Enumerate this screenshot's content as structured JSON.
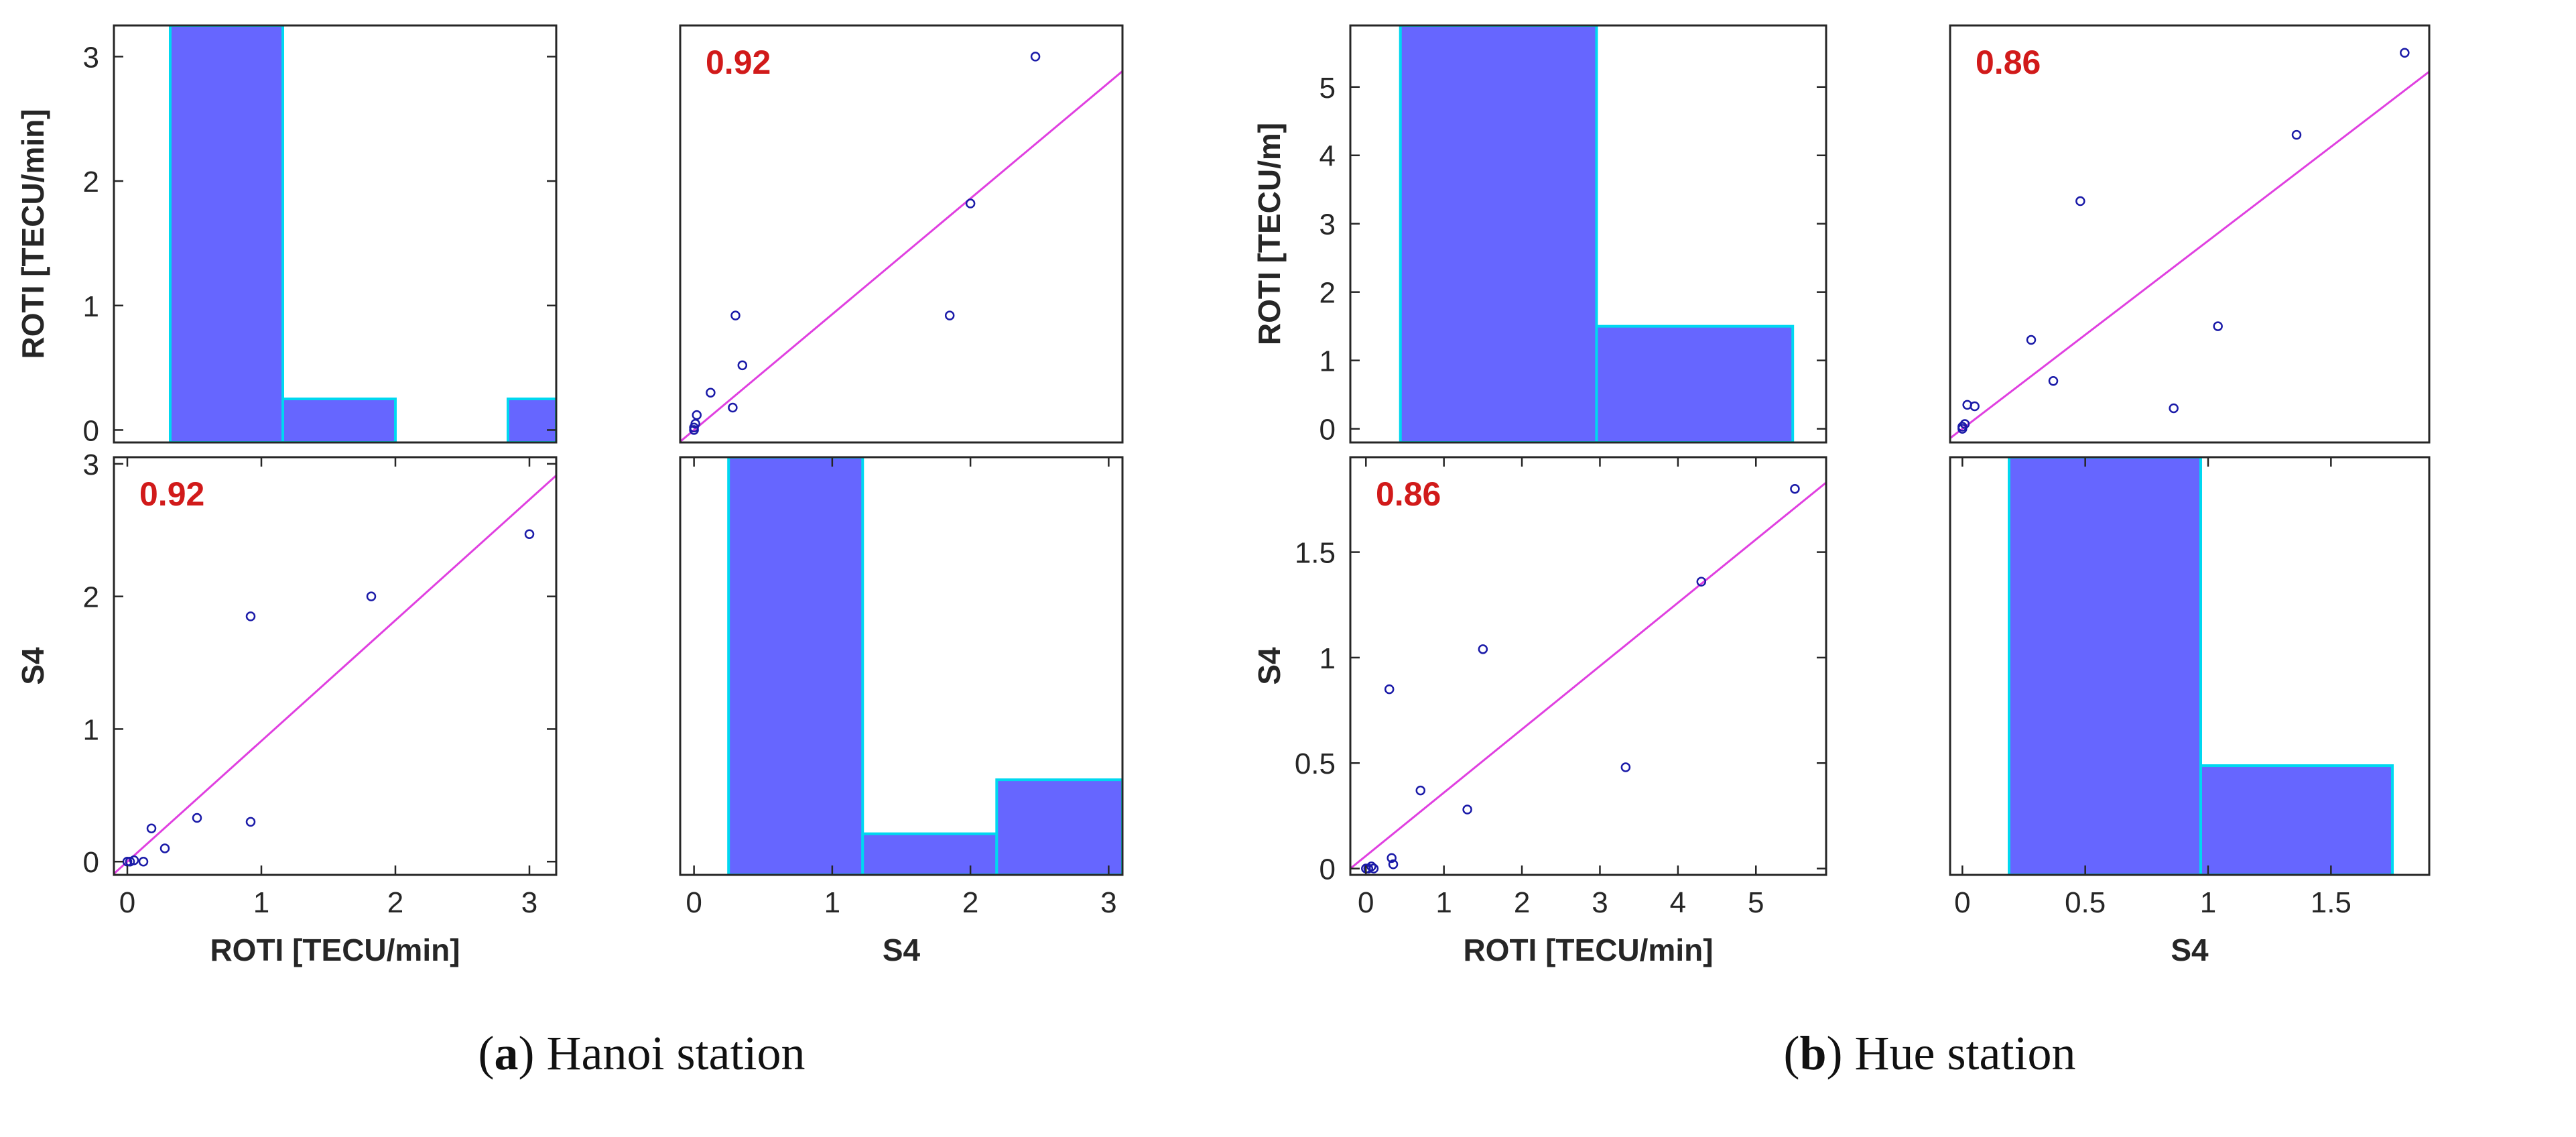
{
  "figure": {
    "captions": [
      {
        "letter": "a",
        "open": "(",
        "close": ")",
        "text": " Hanoi station"
      },
      {
        "letter": "b",
        "open": "(",
        "close": ")",
        "text": " Hue station"
      }
    ]
  },
  "style": {
    "bar_fill": "#6666FF",
    "bar_edge": "#00D8F0",
    "fit_line": "#E040E0",
    "marker": "#1a1aa8",
    "corr_text": "#D11A1A",
    "axis": "#262626"
  },
  "chart_data": [
    {
      "type": "histogram",
      "station": "Hanoi",
      "panel": "top-left",
      "ylabel": "ROTI [TECU/min]",
      "xlabel": "",
      "xlim": [
        -0.1,
        3.2
      ],
      "ylim": [
        -0.1,
        3.25
      ],
      "yticks": [
        0,
        1,
        2,
        3
      ],
      "xticks": [],
      "bins": [
        {
          "x0": 0.32,
          "x1": 1.16,
          "count": 3.25
        },
        {
          "x0": 1.16,
          "x1": 2.0,
          "count": 0.25
        },
        {
          "x0": 2.84,
          "x1": 3.2,
          "count": 0.25
        }
      ]
    },
    {
      "type": "scatter",
      "station": "Hanoi",
      "panel": "top-right",
      "corr": "0.92",
      "ylabel": "",
      "xlabel": "",
      "xlim": [
        -0.1,
        3.1
      ],
      "ylim": [
        -0.1,
        3.25
      ],
      "yticks": [],
      "xticks": [],
      "points": [
        [
          0,
          0
        ],
        [
          0,
          0.02
        ],
        [
          0.01,
          0.05
        ],
        [
          0.02,
          0.12
        ],
        [
          0.12,
          0.3
        ],
        [
          0.28,
          0.18
        ],
        [
          0.3,
          0.92
        ],
        [
          0.35,
          0.52
        ],
        [
          1.85,
          0.92
        ],
        [
          2.0,
          1.82
        ],
        [
          2.47,
          3.0
        ]
      ],
      "fit": {
        "slope": 0.93,
        "intercept": 0.0
      }
    },
    {
      "type": "scatter",
      "station": "Hanoi",
      "panel": "bottom-left",
      "corr": "0.92",
      "ylabel": "S4",
      "xlabel": "ROTI [TECU/min]",
      "xlim": [
        -0.1,
        3.2
      ],
      "ylim": [
        -0.1,
        3.05
      ],
      "yticks": [
        0,
        1,
        2,
        3
      ],
      "xticks": [
        0,
        1,
        2,
        3
      ],
      "points": [
        [
          0,
          0
        ],
        [
          0.02,
          0
        ],
        [
          0.05,
          0.01
        ],
        [
          0.12,
          0
        ],
        [
          0.18,
          0.25
        ],
        [
          0.28,
          0.1
        ],
        [
          0.52,
          0.33
        ],
        [
          0.92,
          0.3
        ],
        [
          0.92,
          1.85
        ],
        [
          1.82,
          2.0
        ],
        [
          3.0,
          2.47
        ]
      ],
      "fit": {
        "slope": 0.91,
        "intercept": 0.0
      }
    },
    {
      "type": "histogram",
      "station": "Hanoi",
      "panel": "bottom-right",
      "ylabel": "",
      "xlabel": "S4",
      "xlim": [
        -0.1,
        3.1
      ],
      "ylim": [
        0,
        3.25
      ],
      "yticks": [],
      "xticks": [
        0,
        1,
        2,
        3
      ],
      "bins": [
        {
          "x0": 0.25,
          "x1": 1.22,
          "count": 3.25
        },
        {
          "x0": 1.22,
          "x1": 2.19,
          "count": 0.32
        },
        {
          "x0": 2.19,
          "x1": 3.1,
          "count": 0.74
        }
      ]
    },
    {
      "type": "histogram",
      "station": "Hue",
      "panel": "top-left",
      "ylabel": "ROTI [TECU/m]",
      "xlabel": "",
      "xlim": [
        -0.1,
        5.6
      ],
      "ylim": [
        -0.2,
        5.9
      ],
      "yticks": [
        0,
        1,
        2,
        3,
        4,
        5
      ],
      "xticks": [],
      "bins": [
        {
          "x0": 0.5,
          "x1": 2.85,
          "count": 5.9
        },
        {
          "x0": 2.85,
          "x1": 5.2,
          "count": 1.5
        }
      ]
    },
    {
      "type": "scatter",
      "station": "Hue",
      "panel": "top-right",
      "corr": "0.86",
      "ylabel": "",
      "xlabel": "",
      "xlim": [
        -0.05,
        1.9
      ],
      "ylim": [
        -0.2,
        5.9
      ],
      "yticks": [],
      "xticks": [],
      "points": [
        [
          0,
          0
        ],
        [
          0,
          0.03
        ],
        [
          0.01,
          0.07
        ],
        [
          0.02,
          0.35
        ],
        [
          0.05,
          0.33
        ],
        [
          0.28,
          1.3
        ],
        [
          0.37,
          0.7
        ],
        [
          0.48,
          3.33
        ],
        [
          0.86,
          0.3
        ],
        [
          1.04,
          1.5
        ],
        [
          1.36,
          4.3
        ],
        [
          1.8,
          5.5
        ]
      ],
      "fit": {
        "slope": 2.75,
        "intercept": 0.0
      }
    },
    {
      "type": "scatter",
      "station": "Hue",
      "panel": "bottom-left",
      "corr": "0.86",
      "ylabel": "S4",
      "xlabel": "ROTI [TECU/min]",
      "xlim": [
        -0.2,
        5.9
      ],
      "ylim": [
        -0.03,
        1.95
      ],
      "yticks": [
        0,
        0.5,
        1,
        1.5
      ],
      "xticks": [
        0,
        1,
        2,
        3,
        4,
        5
      ],
      "points": [
        [
          0,
          0
        ],
        [
          0.03,
          0
        ],
        [
          0.07,
          0.01
        ],
        [
          0.1,
          0
        ],
        [
          0.3,
          0.85
        ],
        [
          0.33,
          0.05
        ],
        [
          0.35,
          0.02
        ],
        [
          0.7,
          0.37
        ],
        [
          1.3,
          0.28
        ],
        [
          1.5,
          1.04
        ],
        [
          3.33,
          0.48
        ],
        [
          4.3,
          1.36
        ],
        [
          5.5,
          1.8
        ]
      ],
      "fit": {
        "slope": 0.3,
        "intercept": 0.06
      }
    },
    {
      "type": "histogram",
      "station": "Hue",
      "panel": "bottom-right",
      "ylabel": "",
      "xlabel": "S4",
      "xlim": [
        -0.05,
        1.9
      ],
      "ylim": [
        0,
        1.95
      ],
      "yticks": [],
      "xticks": [
        0,
        0.5,
        1,
        1.5
      ],
      "bins": [
        {
          "x0": 0.19,
          "x1": 0.97,
          "count": 1.95
        },
        {
          "x0": 0.97,
          "x1": 1.75,
          "count": 0.51
        }
      ]
    }
  ]
}
